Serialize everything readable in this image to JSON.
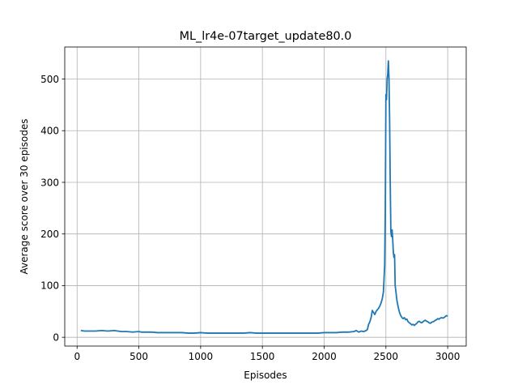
{
  "chart_data": {
    "type": "line",
    "title": "ML_lr4e-07target_update80.0",
    "xlabel": "Episodes",
    "ylabel": "Average score over 30 episodes",
    "xlim": [
      -100,
      3150
    ],
    "ylim": [
      -17,
      562
    ],
    "xticks": [
      0,
      500,
      1000,
      1500,
      2000,
      2500,
      3000
    ],
    "yticks": [
      0,
      100,
      200,
      300,
      400,
      500
    ],
    "grid": true,
    "colors": {
      "line": "#1f77b4",
      "grid": "#b0b0b0",
      "axis": "#000000"
    },
    "series": [
      {
        "points": [
          [
            30,
            13
          ],
          [
            60,
            12
          ],
          [
            100,
            12
          ],
          [
            150,
            12
          ],
          [
            200,
            13
          ],
          [
            250,
            12
          ],
          [
            300,
            13
          ],
          [
            330,
            12
          ],
          [
            360,
            11
          ],
          [
            400,
            11
          ],
          [
            450,
            10
          ],
          [
            500,
            11
          ],
          [
            520,
            10
          ],
          [
            560,
            10
          ],
          [
            600,
            10
          ],
          [
            650,
            9
          ],
          [
            700,
            9
          ],
          [
            750,
            9
          ],
          [
            800,
            9
          ],
          [
            850,
            9
          ],
          [
            900,
            8
          ],
          [
            950,
            8
          ],
          [
            1000,
            9
          ],
          [
            1050,
            8
          ],
          [
            1100,
            8
          ],
          [
            1150,
            8
          ],
          [
            1200,
            8
          ],
          [
            1250,
            8
          ],
          [
            1300,
            8
          ],
          [
            1350,
            8
          ],
          [
            1400,
            9
          ],
          [
            1450,
            8
          ],
          [
            1500,
            8
          ],
          [
            1550,
            8
          ],
          [
            1600,
            8
          ],
          [
            1650,
            8
          ],
          [
            1700,
            8
          ],
          [
            1750,
            8
          ],
          [
            1800,
            8
          ],
          [
            1850,
            8
          ],
          [
            1900,
            8
          ],
          [
            1950,
            8
          ],
          [
            2000,
            9
          ],
          [
            2050,
            9
          ],
          [
            2100,
            9
          ],
          [
            2150,
            10
          ],
          [
            2200,
            10
          ],
          [
            2240,
            11
          ],
          [
            2260,
            13
          ],
          [
            2280,
            10
          ],
          [
            2300,
            12
          ],
          [
            2320,
            11
          ],
          [
            2340,
            13
          ],
          [
            2350,
            15
          ],
          [
            2360,
            25
          ],
          [
            2370,
            30
          ],
          [
            2380,
            38
          ],
          [
            2390,
            52
          ],
          [
            2400,
            48
          ],
          [
            2410,
            44
          ],
          [
            2420,
            50
          ],
          [
            2430,
            53
          ],
          [
            2440,
            56
          ],
          [
            2450,
            60
          ],
          [
            2460,
            66
          ],
          [
            2470,
            74
          ],
          [
            2480,
            88
          ],
          [
            2490,
            140
          ],
          [
            2495,
            250
          ],
          [
            2500,
            470
          ],
          [
            2505,
            460
          ],
          [
            2510,
            500
          ],
          [
            2515,
            510
          ],
          [
            2520,
            535
          ],
          [
            2525,
            500
          ],
          [
            2530,
            420
          ],
          [
            2535,
            300
          ],
          [
            2540,
            205
          ],
          [
            2545,
            195
          ],
          [
            2550,
            208
          ],
          [
            2555,
            190
          ],
          [
            2560,
            165
          ],
          [
            2565,
            155
          ],
          [
            2570,
            160
          ],
          [
            2575,
            100
          ],
          [
            2580,
            90
          ],
          [
            2590,
            70
          ],
          [
            2600,
            58
          ],
          [
            2610,
            48
          ],
          [
            2620,
            42
          ],
          [
            2630,
            38
          ],
          [
            2640,
            36
          ],
          [
            2650,
            38
          ],
          [
            2660,
            34
          ],
          [
            2670,
            35
          ],
          [
            2680,
            30
          ],
          [
            2690,
            28
          ],
          [
            2700,
            26
          ],
          [
            2710,
            24
          ],
          [
            2720,
            25
          ],
          [
            2730,
            23
          ],
          [
            2740,
            25
          ],
          [
            2750,
            27
          ],
          [
            2760,
            30
          ],
          [
            2770,
            31
          ],
          [
            2780,
            29
          ],
          [
            2790,
            28
          ],
          [
            2800,
            30
          ],
          [
            2810,
            32
          ],
          [
            2820,
            33
          ],
          [
            2830,
            31
          ],
          [
            2840,
            30
          ],
          [
            2850,
            28
          ],
          [
            2860,
            27
          ],
          [
            2870,
            29
          ],
          [
            2880,
            30
          ],
          [
            2890,
            31
          ],
          [
            2900,
            33
          ],
          [
            2910,
            34
          ],
          [
            2920,
            36
          ],
          [
            2930,
            35
          ],
          [
            2940,
            37
          ],
          [
            2950,
            38
          ],
          [
            2960,
            37
          ],
          [
            2970,
            38
          ],
          [
            2980,
            40
          ],
          [
            2990,
            42
          ],
          [
            3000,
            41
          ]
        ]
      }
    ]
  }
}
